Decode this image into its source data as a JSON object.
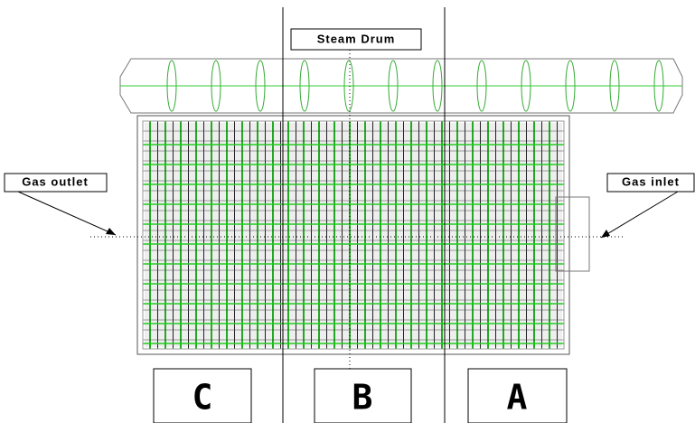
{
  "labels": {
    "steam_drum": "Steam Drum",
    "gas_outlet": "Gas outlet",
    "gas_inlet": "Gas inlet"
  },
  "sections": [
    "C",
    "B",
    "A"
  ]
}
